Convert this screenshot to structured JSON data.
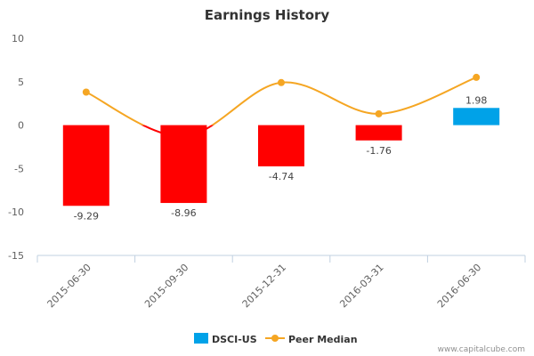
{
  "colors": {
    "bar_positive": "#00a2e8",
    "bar_negative": "#ff0000",
    "line": "#f5a623",
    "line_below_zero": "#ff0000",
    "axis": "#c0d0e0"
  },
  "legend": {
    "items": [
      {
        "label": "DSCI-US",
        "icon": "square-swatch-icon"
      },
      {
        "label": "Peer Median",
        "icon": "line-dot-swatch-icon"
      }
    ]
  },
  "credit": "www.capitalcube.com",
  "chart_data": {
    "type": "bar",
    "title": "Earnings History",
    "xlabel": "",
    "ylabel": "",
    "categories": [
      "2015-06-30",
      "2015-09-30",
      "2015-12-31",
      "2016-03-31",
      "2016-06-30"
    ],
    "ylim": [
      -15,
      10
    ],
    "yticks": [
      10,
      5,
      0,
      -5,
      -10,
      -15
    ],
    "grid": false,
    "legend_position": "bottom-center",
    "series": [
      {
        "name": "DSCI-US",
        "type": "bar",
        "values": [
          -9.29,
          -8.96,
          -4.74,
          -1.76,
          1.98
        ],
        "labels": [
          "-9.29",
          "-8.96",
          "-4.74",
          "-1.76",
          "1.98"
        ]
      },
      {
        "name": "Peer Median",
        "type": "line",
        "values": [
          3.8,
          -1.3,
          4.9,
          1.3,
          5.5
        ]
      }
    ]
  }
}
